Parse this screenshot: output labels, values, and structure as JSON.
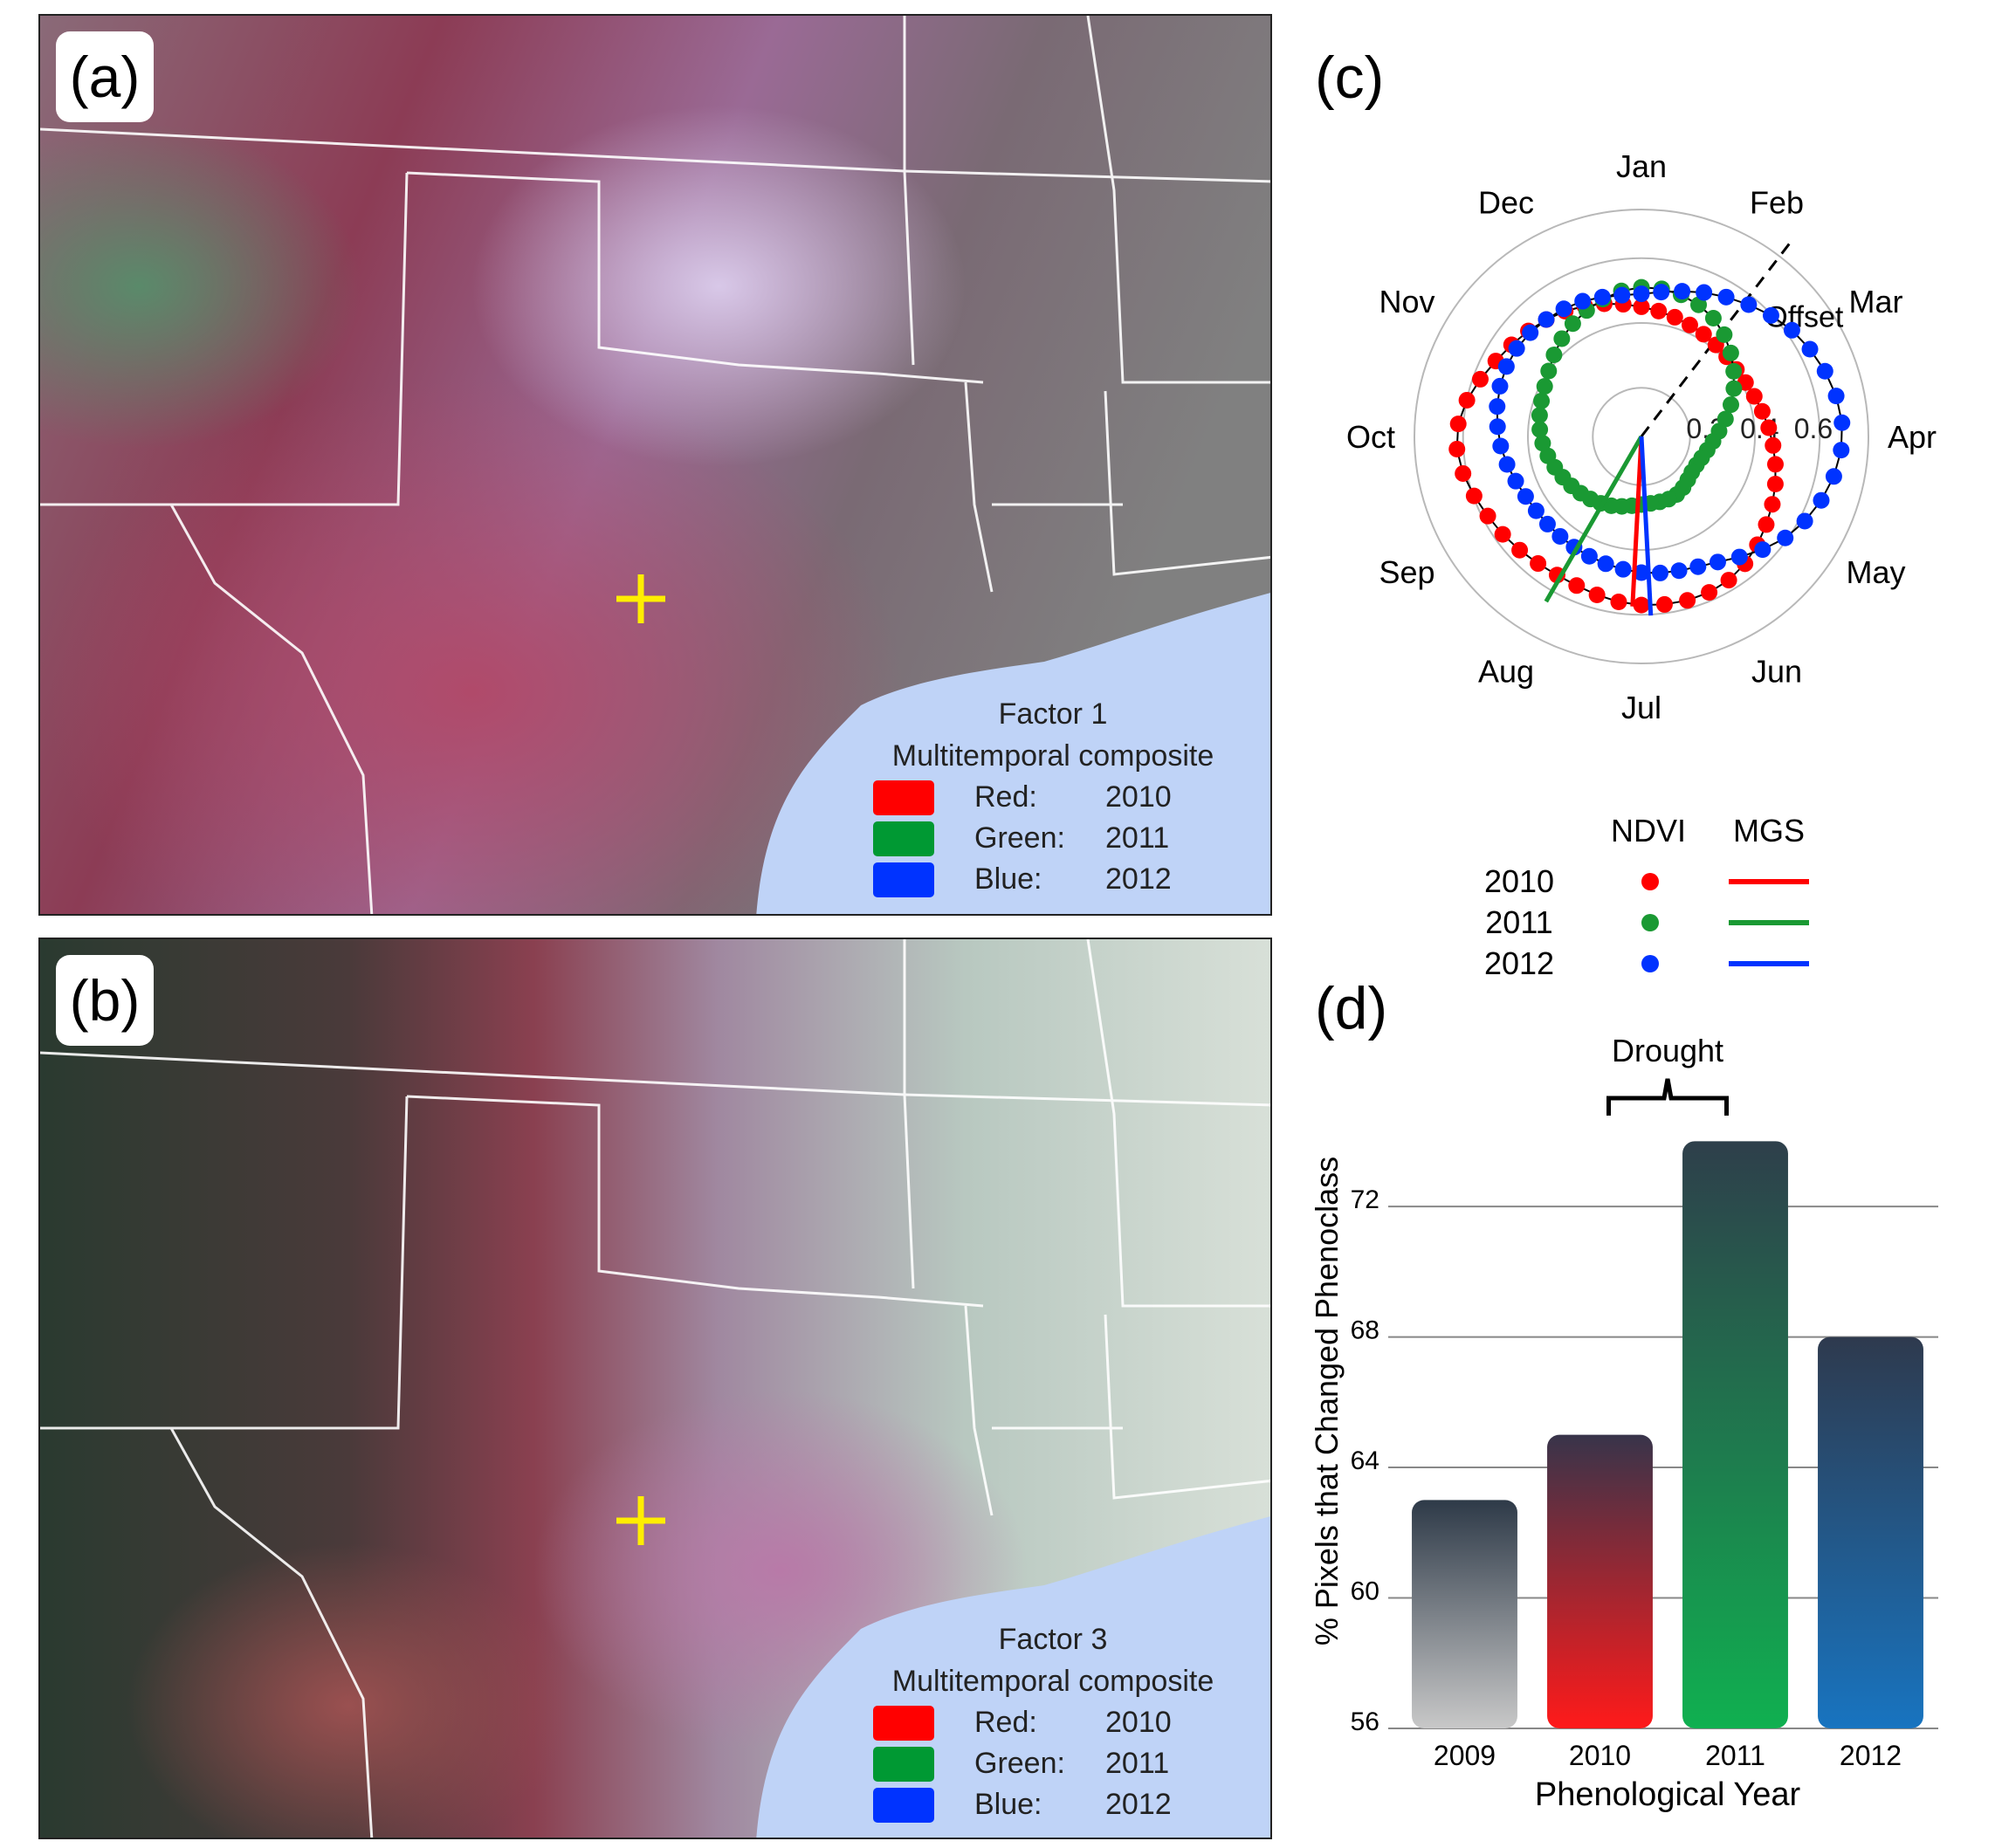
{
  "panels": {
    "a": {
      "label": "(a)",
      "legend": {
        "title_line1": "Factor 1",
        "title_line2": "Multitemporal composite",
        "rows": [
          {
            "channel": "Red:",
            "year": "2010",
            "color": "#ff0000"
          },
          {
            "channel": "Green:",
            "year": "2011",
            "color": "#009933"
          },
          {
            "channel": "Blue:",
            "year": "2012",
            "color": "#0033ff"
          }
        ]
      }
    },
    "b": {
      "label": "(b)",
      "legend": {
        "title_line1": "Factor 3",
        "title_line2": "Multitemporal composite",
        "rows": [
          {
            "channel": "Red:",
            "year": "2010",
            "color": "#ff0000"
          },
          {
            "channel": "Green:",
            "year": "2011",
            "color": "#009933"
          },
          {
            "channel": "Blue:",
            "year": "2012",
            "color": "#0033ff"
          }
        ]
      }
    },
    "c": {
      "label": "(c)"
    },
    "d": {
      "label": "(d)"
    }
  },
  "colors": {
    "y2010": "#ff0000",
    "y2011": "#1a9933",
    "y2012": "#0033ff",
    "water": "#bfd3f7",
    "marker": "#ffee00"
  },
  "chart_data": [
    {
      "type": "polar",
      "months": [
        "Jan",
        "Feb",
        "Mar",
        "Apr",
        "May",
        "Jun",
        "Jul",
        "Aug",
        "Sep",
        "Oct",
        "Nov",
        "Dec"
      ],
      "radial_ticks": [
        "0.2",
        "0.4",
        "0.6"
      ],
      "rlim": [
        0,
        0.7
      ],
      "offset_label": "Offset",
      "offset_month": 1.25,
      "legend": {
        "col_ndvi": "NDVI",
        "col_mgs": "MGS",
        "years": [
          "2010",
          "2011",
          "2012"
        ]
      },
      "series": [
        {
          "name": "2010",
          "color": "#ff0000",
          "mgs_month": 6.1,
          "mgs_r": 0.75,
          "radius_by_month": [
            0.4,
            0.37,
            0.36,
            0.4,
            0.46,
            0.52,
            0.52,
            0.5,
            0.53,
            0.57,
            0.5,
            0.45
          ]
        },
        {
          "name": "2011",
          "color": "#1a9933",
          "mgs_month": 7.0,
          "mgs_r": 0.84,
          "radius_by_month": [
            0.46,
            0.43,
            0.33,
            0.23,
            0.19,
            0.21,
            0.21,
            0.24,
            0.27,
            0.31,
            0.34,
            0.41
          ]
        },
        {
          "name": "2012",
          "color": "#0033ff",
          "mgs_month": 5.9,
          "mgs_r": 0.79,
          "radius_by_month": [
            0.44,
            0.5,
            0.58,
            0.62,
            0.56,
            0.45,
            0.42,
            0.4,
            0.4,
            0.44,
            0.47,
            0.46
          ]
        }
      ]
    },
    {
      "type": "bar",
      "categories": [
        "2009",
        "2010",
        "2011",
        "2012"
      ],
      "values": [
        63.0,
        65.0,
        74.0,
        68.0
      ],
      "ylim": [
        56,
        75
      ],
      "yticks": [
        "56",
        "60",
        "64",
        "68",
        "72"
      ],
      "xlabel": "Phenological Year",
      "ylabel": "% Pixels that Changed Phenoclass",
      "annotation": "Drought",
      "bar_colors": [
        [
          "#2e3a48",
          "#c8c8c8"
        ],
        [
          "#38344a",
          "#ff1a1a"
        ],
        [
          "#2e3f4b",
          "#10b050"
        ],
        [
          "#2e3a4e",
          "#1874c0"
        ]
      ]
    }
  ]
}
